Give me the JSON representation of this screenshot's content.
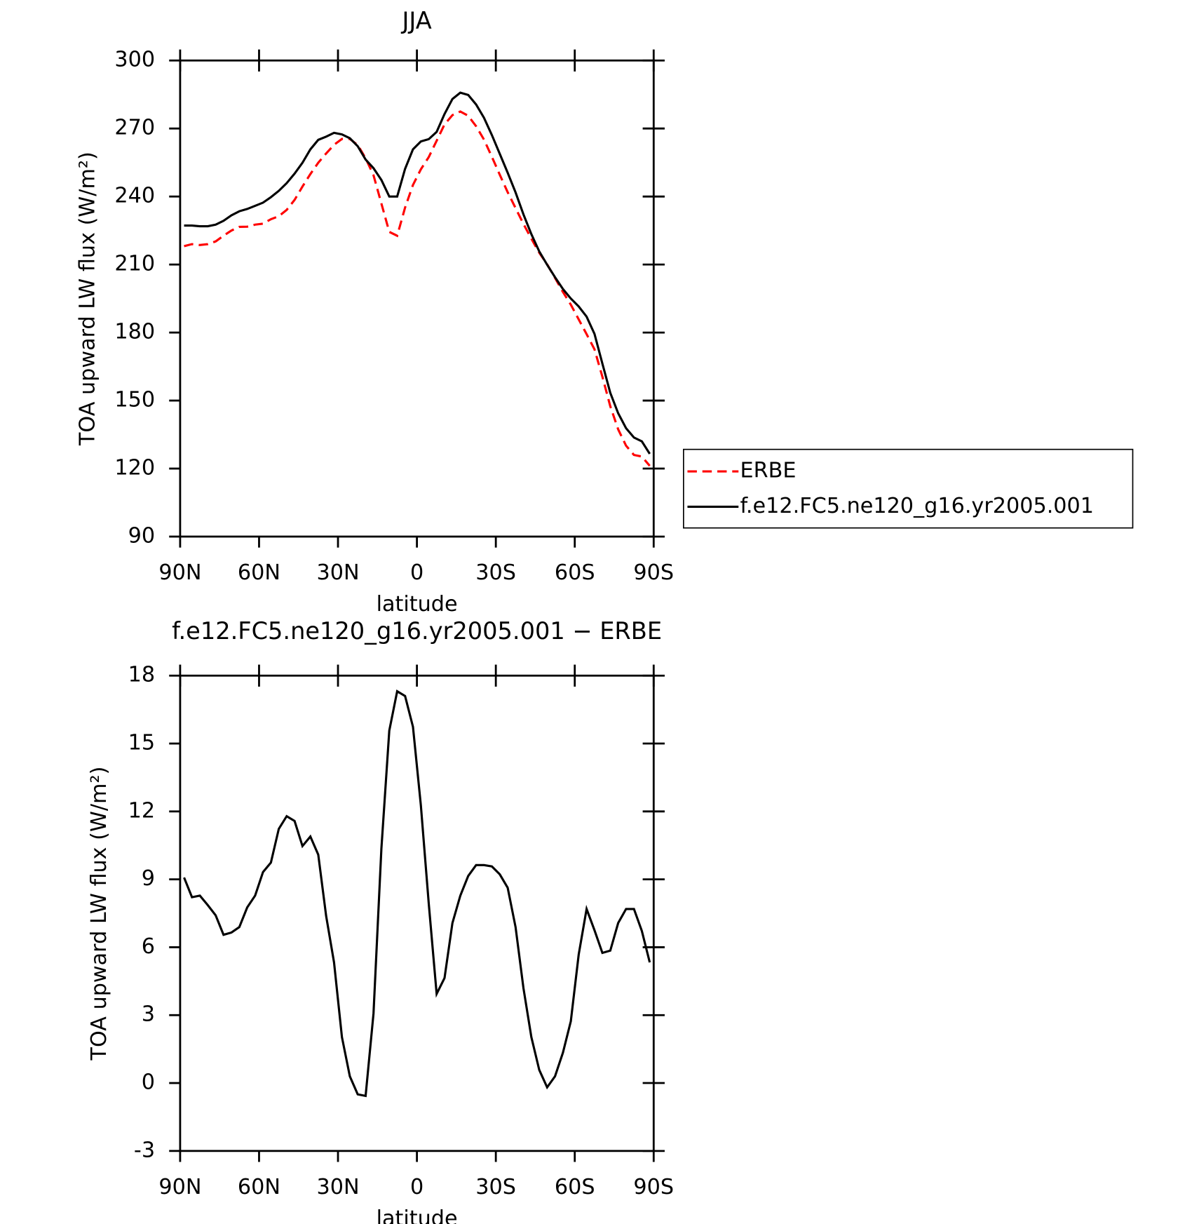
{
  "chart_data": [
    {
      "type": "line",
      "title": "JJA",
      "xlabel": "latitude",
      "ylabel": "TOA upward LW flux (W/m²)",
      "x": [
        88.5,
        85.5,
        82.5,
        79.5,
        76.5,
        73.5,
        70.5,
        67.5,
        64.5,
        61.5,
        58.5,
        55.5,
        52.5,
        49.5,
        46.5,
        43.5,
        40.5,
        37.5,
        34.5,
        31.5,
        28.5,
        25.5,
        22.5,
        19.5,
        16.5,
        13.5,
        10.5,
        7.5,
        4.5,
        1.5,
        -1.5,
        -4.5,
        -7.5,
        -10.5,
        -13.5,
        -16.5,
        -19.5,
        -22.5,
        -25.5,
        -28.5,
        -31.5,
        -34.5,
        -37.5,
        -40.5,
        -43.5,
        -46.5,
        -49.5,
        -52.5,
        -55.5,
        -58.5,
        -61.5,
        -64.5,
        -67.5,
        -70.5,
        -73.5,
        -76.5,
        -79.5,
        -82.5,
        -85.5,
        -88.5
      ],
      "series": [
        {
          "name": "ERBE",
          "color": "#ff0000",
          "dashed": true,
          "values": [
            218.1,
            219.0,
            218.6,
            219.0,
            220.2,
            222.7,
            225.0,
            226.6,
            226.7,
            227.6,
            228.0,
            230.0,
            231.3,
            234.1,
            238.5,
            244.4,
            249.9,
            254.9,
            259.0,
            262.8,
            265.4,
            265.4,
            262.7,
            256.9,
            249.4,
            236.9,
            224.4,
            222.7,
            235.1,
            245.1,
            252.0,
            257.4,
            264.6,
            271.8,
            275.9,
            277.5,
            275.6,
            271.0,
            265.1,
            257.5,
            249.6,
            241.9,
            234.9,
            227.9,
            221.4,
            215.2,
            210.1,
            204.1,
            197.9,
            192.3,
            185.8,
            179.3,
            172.6,
            160.5,
            147.5,
            137.3,
            130.1,
            126.0,
            125.3,
            121.2
          ]
        },
        {
          "name": "f.e12.FC5.ne120_g16.yr2005.001",
          "color": "#000000",
          "dashed": false,
          "values": [
            227.2,
            227.2,
            226.9,
            226.9,
            227.6,
            229.3,
            231.7,
            233.5,
            234.5,
            235.9,
            237.3,
            239.7,
            242.5,
            245.9,
            250.1,
            254.9,
            260.8,
            265.0,
            266.4,
            268.1,
            267.4,
            265.7,
            262.2,
            256.3,
            252.5,
            247.3,
            240.0,
            240.0,
            252.2,
            260.8,
            264.3,
            265.3,
            268.5,
            276.4,
            283.0,
            285.8,
            284.8,
            280.6,
            274.7,
            267.1,
            258.8,
            250.5,
            241.8,
            232.1,
            223.4,
            215.8,
            209.9,
            204.4,
            199.2,
            195.0,
            191.5,
            187.0,
            179.4,
            166.3,
            153.4,
            144.4,
            137.8,
            133.7,
            132.0,
            126.5
          ]
        }
      ],
      "xlim": [
        90,
        -90
      ],
      "xticks": [
        {
          "value": 90,
          "label": "90N"
        },
        {
          "value": 60,
          "label": "60N"
        },
        {
          "value": 30,
          "label": "30N"
        },
        0,
        {
          "value": -30,
          "label": "30S"
        },
        {
          "value": -60,
          "label": "60S"
        },
        {
          "value": -90,
          "label": "90S"
        }
      ],
      "ylim": [
        90,
        300
      ],
      "yticks": [
        90,
        120,
        150,
        180,
        210,
        240,
        270,
        300
      ],
      "legend": "right"
    },
    {
      "type": "line",
      "title": "f.e12.FC5.ne120_g16.yr2005.001 − ERBE",
      "xlabel": "latitude",
      "ylabel": "TOA upward LW flux (W/m²)",
      "x": [
        88.5,
        85.5,
        82.5,
        79.5,
        76.5,
        73.5,
        70.5,
        67.5,
        64.5,
        61.5,
        58.5,
        55.5,
        52.5,
        49.5,
        46.5,
        43.5,
        40.5,
        37.5,
        34.5,
        31.5,
        28.5,
        25.5,
        22.5,
        19.5,
        16.5,
        13.5,
        10.5,
        7.5,
        4.5,
        1.5,
        -1.5,
        -4.5,
        -7.5,
        -10.5,
        -13.5,
        -16.5,
        -19.5,
        -22.5,
        -25.5,
        -28.5,
        -31.5,
        -34.5,
        -37.5,
        -40.5,
        -43.5,
        -46.5,
        -49.5,
        -52.5,
        -55.5,
        -58.5,
        -61.5,
        -64.5,
        -67.5,
        -70.5,
        -73.5,
        -76.5,
        -79.5,
        -82.5,
        -85.5,
        -88.5
      ],
      "series": [
        {
          "color": "#000000",
          "dashed": false,
          "values": [
            9.08,
            8.21,
            8.28,
            7.86,
            7.41,
            6.55,
            6.65,
            6.89,
            7.76,
            8.28,
            9.32,
            9.74,
            11.23,
            11.79,
            11.58,
            10.47,
            10.89,
            10.09,
            7.38,
            5.33,
            2.03,
            0.3,
            -0.5,
            -0.57,
            3.07,
            10.36,
            15.57,
            17.31,
            17.1,
            15.74,
            12.27,
            7.93,
            3.94,
            4.64,
            7.07,
            8.28,
            9.15,
            9.63,
            9.63,
            9.57,
            9.22,
            8.63,
            6.89,
            4.19,
            2.03,
            0.58,
            -0.19,
            0.3,
            1.34,
            2.73,
            5.68,
            7.69,
            6.75,
            5.75,
            5.85,
            7.07,
            7.69,
            7.69,
            6.72,
            5.33
          ]
        }
      ],
      "xlim": [
        90,
        -90
      ],
      "xticks": [
        {
          "value": 90,
          "label": "90N"
        },
        {
          "value": 60,
          "label": "60N"
        },
        {
          "value": 30,
          "label": "30N"
        },
        0,
        {
          "value": -30,
          "label": "30S"
        },
        {
          "value": -60,
          "label": "60S"
        },
        {
          "value": -90,
          "label": "90S"
        }
      ],
      "ylim": [
        -3,
        18
      ],
      "yticks": [
        -3,
        0,
        3,
        6,
        9,
        12,
        15,
        18
      ]
    }
  ]
}
